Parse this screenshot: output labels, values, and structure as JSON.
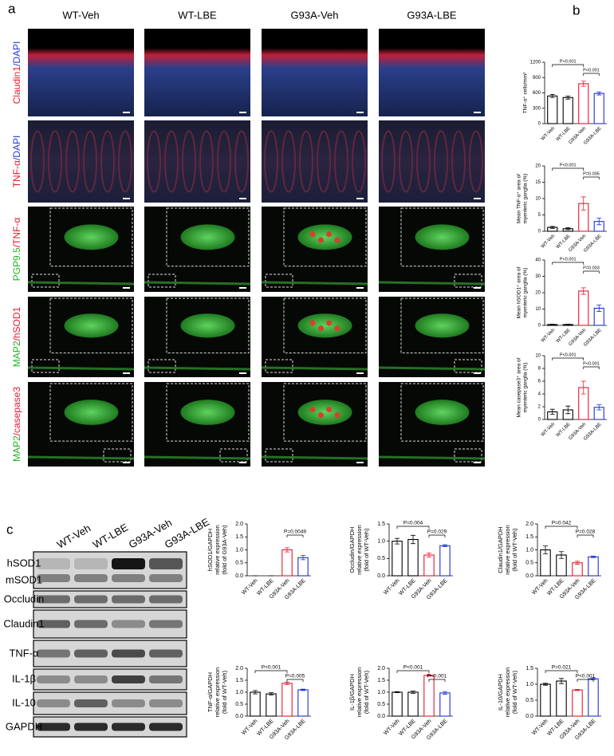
{
  "panel_a": {
    "label": "a",
    "columns": [
      "WT-Veh",
      "WT-LBE",
      "G93A-Veh",
      "G93A-LBE"
    ],
    "rows": [
      {
        "parts": [
          {
            "text": "Claudin1",
            "color": "#e8192c"
          },
          {
            "text": "/DAPI",
            "color": "#2a3bd8"
          }
        ]
      },
      {
        "parts": [
          {
            "text": "TNF-α",
            "color": "#e8192c"
          },
          {
            "text": "/DAPI",
            "color": "#2a3bd8"
          }
        ]
      },
      {
        "parts": [
          {
            "text": "PGP9.5",
            "color": "#22b022"
          },
          {
            "text": "/TNF-α",
            "color": "#e8192c"
          }
        ]
      },
      {
        "parts": [
          {
            "text": "MAP2",
            "color": "#22b022"
          },
          {
            "text": "/hSOD1",
            "color": "#e8192c"
          }
        ]
      },
      {
        "parts": [
          {
            "text": "MAP2",
            "color": "#22b022"
          },
          {
            "text": "/casepase3",
            "color": "#e8192c"
          }
        ]
      }
    ]
  },
  "panel_b": {
    "label": "b"
  },
  "panel_c": {
    "label": "c",
    "blot_columns": [
      "WT-Veh",
      "WT-LBE",
      "G93A-Veh",
      "G93A-LBE"
    ],
    "blot_rows": [
      "hSOD1",
      "mSOD1",
      "Occludin",
      "Claudin1",
      "TNF-α",
      "IL-1β",
      "IL-10",
      "GAPDH"
    ]
  },
  "chart_data": [
    {
      "type": "bar",
      "ylabel": [
        "TNF-α⁺ cells/mm²"
      ],
      "categories": [
        "WT-Veh",
        "WT-LBE",
        "G93A-Veh",
        "G93A-LBE"
      ],
      "values": [
        540,
        510,
        780,
        590
      ],
      "errors": [
        30,
        30,
        50,
        30
      ],
      "colors": [
        "#000000",
        "#000000",
        "#e8192c",
        "#1f2fd6"
      ],
      "ylim": [
        0,
        1200
      ],
      "yticks": [
        0,
        300,
        600,
        900,
        1200
      ],
      "comparisons": [
        {
          "from": "WT-Veh",
          "to": "G93A-Veh",
          "label": "P<0.001"
        },
        {
          "from": "G93A-Veh",
          "to": "G93A-LBE",
          "label": "P<0.001"
        }
      ]
    },
    {
      "type": "bar",
      "ylabel": [
        "Mean TNF-α⁺ area of",
        "myenteric ganglia (%)"
      ],
      "categories": [
        "WT-Veh",
        "WT-LBE",
        "G93A-Veh",
        "G93A-LBE"
      ],
      "values": [
        1.2,
        0.8,
        8.5,
        3
      ],
      "errors": [
        0.3,
        0.3,
        2,
        1
      ],
      "colors": [
        "#000000",
        "#000000",
        "#e8192c",
        "#1f2fd6"
      ],
      "ylim": [
        0,
        20
      ],
      "yticks": [
        0,
        5,
        10,
        15,
        20
      ],
      "comparisons": [
        {
          "from": "WT-Veh",
          "to": "G93A-Veh",
          "label": "P<0.001"
        },
        {
          "from": "G93A-Veh",
          "to": "G93A-LBE",
          "label": "P=0.005"
        }
      ]
    },
    {
      "type": "bar",
      "ylabel": [
        "Mean hSOD1⁺ area of",
        "myenteric ganglia (%)"
      ],
      "categories": [
        "WT-Veh",
        "WT-LBE",
        "G93A-Veh",
        "G93A-LBE"
      ],
      "values": [
        0.5,
        0.5,
        21,
        10.5
      ],
      "errors": [
        0.2,
        0.2,
        2,
        2
      ],
      "colors": [
        "#000000",
        "#000000",
        "#e8192c",
        "#1f2fd6"
      ],
      "ylim": [
        0,
        40
      ],
      "yticks": [
        0,
        10,
        20,
        30,
        40
      ],
      "comparisons": [
        {
          "from": "WT-Veh",
          "to": "G93A-Veh",
          "label": "P<0.001"
        },
        {
          "from": "G93A-Veh",
          "to": "G93A-LBE",
          "label": "P=0.003"
        }
      ]
    },
    {
      "type": "bar",
      "ylabel": [
        "Mean casepase3⁺ area of",
        "myenteric ganglia (%)"
      ],
      "categories": [
        "WT-Veh",
        "WT-LBE",
        "G93A-Veh",
        "G93A-LBE"
      ],
      "values": [
        1.2,
        1.5,
        5,
        1.9
      ],
      "errors": [
        0.4,
        0.6,
        1,
        0.4
      ],
      "colors": [
        "#000000",
        "#000000",
        "#e8192c",
        "#1f2fd6"
      ],
      "ylim": [
        0,
        10
      ],
      "yticks": [
        0,
        2,
        4,
        6,
        8,
        10
      ],
      "comparisons": [
        {
          "from": "WT-Veh",
          "to": "G93A-Veh",
          "label": "P<0.001"
        },
        {
          "from": "G93A-Veh",
          "to": "G93A-LBE",
          "label": "P<0.001"
        }
      ]
    },
    {
      "type": "bar",
      "ylabel": [
        "hSOD1/GAPDH",
        "relative expression",
        "(fold of G93A-Veh)"
      ],
      "categories": [
        "WT-Veh",
        "WT-LBE",
        "G93A-Veh",
        "G93A-LBE"
      ],
      "values": [
        0,
        0,
        1.0,
        0.7
      ],
      "errors": [
        0,
        0,
        0.08,
        0.08
      ],
      "colors": [
        "#000000",
        "#000000",
        "#e8192c",
        "#1f2fd6"
      ],
      "ylim": [
        0,
        2
      ],
      "yticks": [
        {
          "value": 0,
          "label": "0.0"
        },
        0.5,
        {
          "value": 1,
          "label": "1.0"
        },
        1.5,
        {
          "value": 2,
          "label": "2.0"
        }
      ],
      "comparisons": [
        {
          "from": "G93A-Veh",
          "to": "G93A-LBE",
          "label": "P=0.0049"
        }
      ]
    },
    {
      "type": "bar",
      "ylabel": [
        "Occludin/GAPDH",
        "relative expression",
        "(fold of WT-Veh)"
      ],
      "categories": [
        "WT-Veh",
        "WT-LBE",
        "G93A-Veh",
        "G93A-LBE"
      ],
      "values": [
        1.0,
        1.05,
        0.6,
        0.87
      ],
      "errors": [
        0.08,
        0.12,
        0.06,
        0.03
      ],
      "colors": [
        "#000000",
        "#000000",
        "#e8192c",
        "#1f2fd6"
      ],
      "ylim": [
        0,
        1.5
      ],
      "yticks": [
        {
          "value": 0,
          "label": "0.0"
        },
        0.5,
        {
          "value": 1,
          "label": "1.0"
        },
        1.5
      ],
      "comparisons": [
        {
          "from": "WT-Veh",
          "to": "G93A-Veh",
          "label": "P=0.004"
        },
        {
          "from": "G93A-Veh",
          "to": "G93A-LBE",
          "label": "P=0.029"
        }
      ]
    },
    {
      "type": "bar",
      "ylabel": [
        "Claudin1/GAPDH",
        "relative expression",
        "(fold of WT-Veh)"
      ],
      "categories": [
        "WT-Veh",
        "WT-LBE",
        "G93A-Veh",
        "G93A-LBE"
      ],
      "values": [
        1.0,
        0.8,
        0.5,
        0.73
      ],
      "errors": [
        0.15,
        0.13,
        0.06,
        0.03
      ],
      "colors": [
        "#000000",
        "#000000",
        "#e8192c",
        "#1f2fd6"
      ],
      "ylim": [
        0,
        2
      ],
      "yticks": [
        {
          "value": 0,
          "label": "0.0"
        },
        0.5,
        {
          "value": 1,
          "label": "1.0"
        },
        1.5,
        {
          "value": 2,
          "label": "2.0"
        }
      ],
      "comparisons": [
        {
          "from": "WT-Veh",
          "to": "G93A-Veh",
          "label": "P=0.042"
        },
        {
          "from": "G93A-Veh",
          "to": "G93A-LBE",
          "label": "P=0.028"
        }
      ]
    },
    {
      "type": "bar",
      "ylabel": [
        "TNF-α/GAPDH",
        "relative expression",
        "(fold of WT-Veh)"
      ],
      "categories": [
        "WT-Veh",
        "WT-LBE",
        "G93A-Veh",
        "G93A-LBE"
      ],
      "values": [
        1.0,
        0.93,
        1.37,
        1.1
      ],
      "errors": [
        0.07,
        0.05,
        0.05,
        0.03
      ],
      "colors": [
        "#000000",
        "#000000",
        "#e8192c",
        "#1f2fd6"
      ],
      "ylim": [
        0,
        2
      ],
      "yticks": [
        {
          "value": 0,
          "label": "0.0"
        },
        0.5,
        {
          "value": 1,
          "label": "1.0"
        },
        1.5,
        {
          "value": 2,
          "label": "2.0"
        }
      ],
      "comparisons": [
        {
          "from": "WT-Veh",
          "to": "G93A-Veh",
          "label": "P<0.001"
        },
        {
          "from": "G93A-Veh",
          "to": "G93A-LBE",
          "label": "P=0.005"
        }
      ]
    },
    {
      "type": "bar",
      "ylabel": [
        "IL-1β/GAPDH",
        "relative expression",
        "(fold of WT-Veh)"
      ],
      "categories": [
        "WT-Veh",
        "WT-LBE",
        "G93A-Veh",
        "G93A-LBE"
      ],
      "values": [
        1.0,
        1.0,
        1.7,
        0.97
      ],
      "errors": [
        0.02,
        0.05,
        0.03,
        0.06
      ],
      "colors": [
        "#000000",
        "#000000",
        "#e8192c",
        "#1f2fd6"
      ],
      "ylim": [
        0,
        2
      ],
      "yticks": [
        {
          "value": 0,
          "label": "0.0"
        },
        0.5,
        {
          "value": 1,
          "label": "1.0"
        },
        1.5,
        {
          "value": 2,
          "label": "2.0"
        }
      ],
      "comparisons": [
        {
          "from": "WT-Veh",
          "to": "G93A-Veh",
          "label": "P<0.001"
        },
        {
          "from": "G93A-Veh",
          "to": "G93A-LBE",
          "label": "P<0.001"
        }
      ]
    },
    {
      "type": "bar",
      "ylabel": [
        "IL-10/GAPDH",
        "relative expression",
        "(fold of WT-Veh)"
      ],
      "categories": [
        "WT-Veh",
        "WT-LBE",
        "G93A-Veh",
        "G93A-LBE"
      ],
      "values": [
        1.0,
        1.1,
        0.82,
        1.17
      ],
      "errors": [
        0.03,
        0.08,
        0.02,
        0.03
      ],
      "colors": [
        "#000000",
        "#000000",
        "#e8192c",
        "#1f2fd6"
      ],
      "ylim": [
        0,
        1.5
      ],
      "yticks": [
        {
          "value": 0,
          "label": "0.0"
        },
        0.5,
        {
          "value": 1,
          "label": "1.0"
        },
        1.5
      ],
      "comparisons": [
        {
          "from": "WT-Veh",
          "to": "G93A-Veh",
          "label": "P=0.021"
        },
        {
          "from": "G93A-Veh",
          "to": "G93A-LBE",
          "label": "P<0.001"
        }
      ]
    }
  ]
}
